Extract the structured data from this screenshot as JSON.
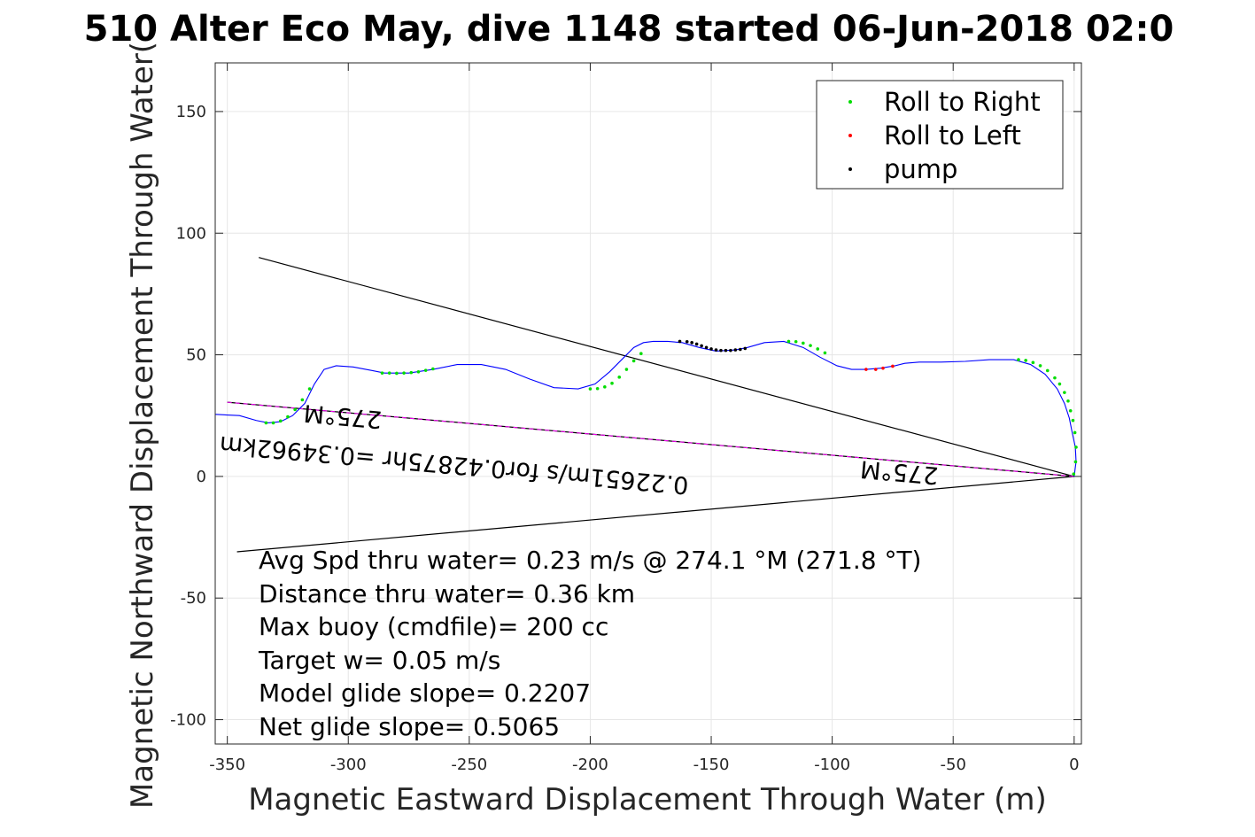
{
  "chart_data": {
    "type": "line",
    "title": "510 Alter Eco May, dive 1148 started 06-Jun-2018 02:0",
    "xlabel": "Magnetic Eastward Displacement Through Water (m)",
    "ylabel": "Magnetic Northward Displacement Through Water(",
    "xlim": [
      -355,
      3
    ],
    "ylim": [
      -110,
      170
    ],
    "xticks": [
      -350,
      -300,
      -250,
      -200,
      -150,
      -100,
      -50,
      0
    ],
    "yticks": [
      -100,
      -50,
      0,
      50,
      100,
      150
    ],
    "grid": true,
    "legend_position": "top-right",
    "legend": [
      "Roll to Right",
      "Roll to Left",
      "pump"
    ],
    "track": {
      "name": "track",
      "color": "#0000ff",
      "x": [
        -355,
        -345,
        -338,
        -333,
        -328,
        -323,
        -318,
        -314,
        -310,
        -305,
        -298,
        -290,
        -285,
        -275,
        -265,
        -255,
        -245,
        -235,
        -225,
        -215,
        -205,
        -198,
        -192,
        -186,
        -182,
        -178,
        -174,
        -168,
        -162,
        -155,
        -148,
        -140,
        -135,
        -128,
        -120,
        -112,
        -105,
        -98,
        -92,
        -86,
        -80,
        -74,
        -70,
        -64,
        -55,
        -45,
        -35,
        -25,
        -18,
        -12,
        -7,
        -4,
        -2,
        -0.8,
        0.5,
        0.8,
        0
      ],
      "y": [
        25.5,
        25,
        23,
        22,
        22.5,
        25,
        30,
        38,
        44,
        45.5,
        45,
        43.5,
        42.5,
        42.5,
        44,
        46,
        46,
        44,
        40,
        36.5,
        36,
        38,
        43,
        49,
        53,
        55,
        55.5,
        55.5,
        55,
        53,
        51.5,
        52,
        53,
        55,
        55.5,
        53,
        49,
        45.5,
        44,
        44,
        44.5,
        45.5,
        46.5,
        47,
        47,
        47.3,
        48,
        48,
        46,
        42,
        36,
        30,
        24,
        18,
        12,
        6,
        0
      ]
    },
    "roll_right": {
      "name": "Roll to Right",
      "color": "#00dd00",
      "x": [
        -334,
        -331,
        -328,
        -325,
        -322,
        -319,
        -316,
        -286,
        -283,
        -280,
        -277,
        -274,
        -271,
        -268,
        -265,
        -200,
        -197,
        -194,
        -191,
        -188,
        -185,
        -182,
        -179,
        -118,
        -115,
        -112,
        -109,
        -106,
        -103,
        -23,
        -20,
        -17,
        -14,
        -11,
        -8,
        -6,
        -4,
        -2.5,
        -1.5,
        -0.5,
        0.3,
        0.8,
        0.6,
        -0.2
      ],
      "y": [
        22,
        22,
        22.8,
        24.5,
        27.5,
        31.5,
        36,
        42.5,
        42.5,
        42.4,
        42.5,
        42.7,
        43,
        43.6,
        44.2,
        36,
        36.1,
        36.8,
        38.3,
        40.8,
        44,
        47.5,
        50.5,
        55.5,
        55.4,
        54.8,
        53.8,
        52.4,
        50.8,
        48,
        47.7,
        46.8,
        45.5,
        43.5,
        40.5,
        38,
        34.5,
        31,
        27,
        23,
        18,
        12,
        6,
        1
      ]
    },
    "roll_left": {
      "name": "Roll to Left",
      "color": "#ff0000",
      "x": [
        -86,
        -82,
        -79,
        -75
      ],
      "y": [
        44,
        44,
        44.5,
        45.3
      ]
    },
    "pump": {
      "name": "pump",
      "color": "#000000",
      "x": [
        -163,
        -160,
        -158,
        -156,
        -154,
        -152,
        -150,
        -148,
        -146,
        -144,
        -142,
        -140,
        -138,
        -136
      ],
      "y": [
        55.5,
        55.4,
        55,
        54.4,
        53.7,
        53,
        52.4,
        52,
        51.8,
        51.8,
        51.8,
        52,
        52.2,
        52.6
      ]
    },
    "cone_lines": [
      {
        "name": "cone-upper",
        "x": [
          -337,
          0
        ],
        "y": [
          90,
          0
        ],
        "color": "#000000"
      },
      {
        "name": "cone-lower",
        "x": [
          -346,
          0
        ],
        "y": [
          -31,
          0
        ],
        "color": "#000000"
      },
      {
        "name": "mean-heading",
        "x": [
          -350,
          0
        ],
        "y": [
          30.5,
          0
        ],
        "color": "#000000"
      },
      {
        "name": "mean-heading-magenta",
        "x": [
          -350,
          0
        ],
        "y": [
          30.5,
          0
        ],
        "color": "#ff00ff"
      }
    ],
    "annotations": [
      {
        "text": "275°M",
        "x": -302,
        "y": 28
      },
      {
        "text": "0.22651m/s for0.42875hr =0.34962km",
        "x": -256,
        "y": 8
      },
      {
        "text": "275°M",
        "x": -72,
        "y": 5
      }
    ],
    "stats": [
      "Avg Spd thru water=  0.23 m/s @ 274.1 °M (271.8 °T)",
      "Distance thru water=  0.36 km",
      "Max buoy (cmdfile)= 200 cc",
      "Target w= 0.05 m/s",
      "Model glide slope= 0.2207",
      "Net glide slope= 0.5065"
    ]
  }
}
